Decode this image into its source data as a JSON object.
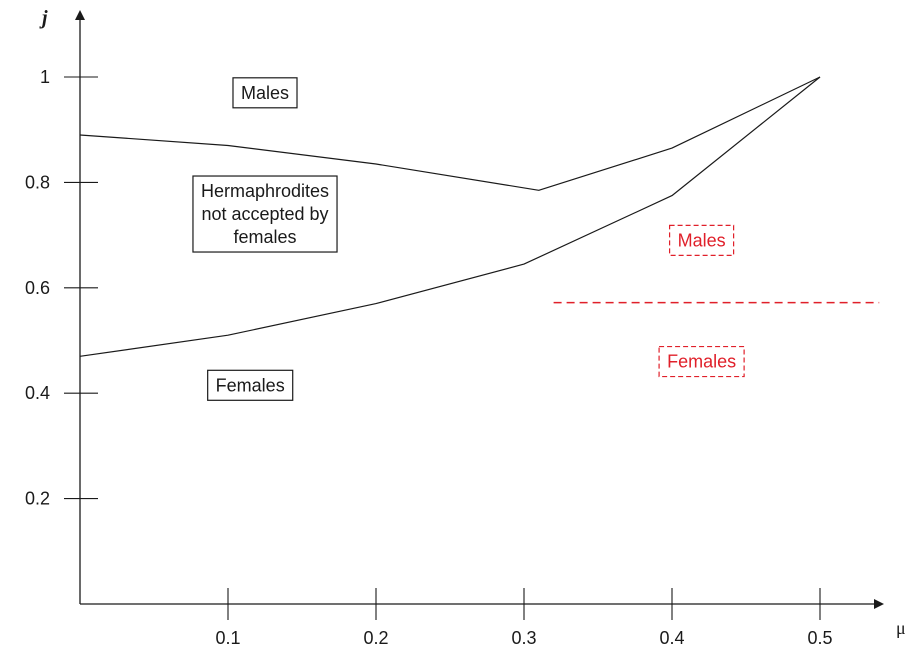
{
  "chart_data": {
    "type": "line",
    "xlabel": "μ",
    "ylabel": "j",
    "xlim": [
      0,
      0.54
    ],
    "ylim": [
      0,
      1.05
    ],
    "x_ticks": [
      {
        "value": 0.1,
        "label": "0.1"
      },
      {
        "value": 0.2,
        "label": "0.2"
      },
      {
        "value": 0.3,
        "label": "0.3"
      },
      {
        "value": 0.4,
        "label": "0.4"
      },
      {
        "value": 0.5,
        "label": "0.5"
      }
    ],
    "y_ticks": [
      {
        "value": 0.2,
        "label": "0.2"
      },
      {
        "value": 0.4,
        "label": "0.4"
      },
      {
        "value": 0.6,
        "label": "0.6"
      },
      {
        "value": 0.8,
        "label": "0.8"
      },
      {
        "value": 1.0,
        "label": "1"
      }
    ],
    "series": [
      {
        "color": "#1a1a1a",
        "style": "solid",
        "x": [
          0.0,
          0.1,
          0.2,
          0.31,
          0.4,
          0.5
        ],
        "y": [
          0.89,
          0.87,
          0.835,
          0.785,
          0.865,
          1.0
        ]
      },
      {
        "color": "#1a1a1a",
        "style": "solid",
        "x": [
          0.0,
          0.1,
          0.2,
          0.3,
          0.4,
          0.5
        ],
        "y": [
          0.47,
          0.51,
          0.57,
          0.645,
          0.775,
          1.0
        ]
      },
      {
        "color": "#e0202a",
        "style": "dashed",
        "x": [
          0.32,
          0.54
        ],
        "y": [
          0.572,
          0.572
        ]
      }
    ],
    "annotations": [
      {
        "lines": [
          "Males"
        ],
        "x": 0.125,
        "y": 0.97,
        "color": "#1a1a1a",
        "box": "solid"
      },
      {
        "lines": [
          "Hermaphrodites",
          "not accepted by",
          "females"
        ],
        "x": 0.125,
        "y": 0.74,
        "color": "#1a1a1a",
        "box": "solid"
      },
      {
        "lines": [
          "Females"
        ],
        "x": 0.115,
        "y": 0.415,
        "color": "#1a1a1a",
        "box": "solid"
      },
      {
        "lines": [
          "Males"
        ],
        "x": 0.42,
        "y": 0.69,
        "color": "#e0202a",
        "box": "dashed"
      },
      {
        "lines": [
          "Females"
        ],
        "x": 0.42,
        "y": 0.46,
        "color": "#e0202a",
        "box": "dashed"
      }
    ]
  }
}
